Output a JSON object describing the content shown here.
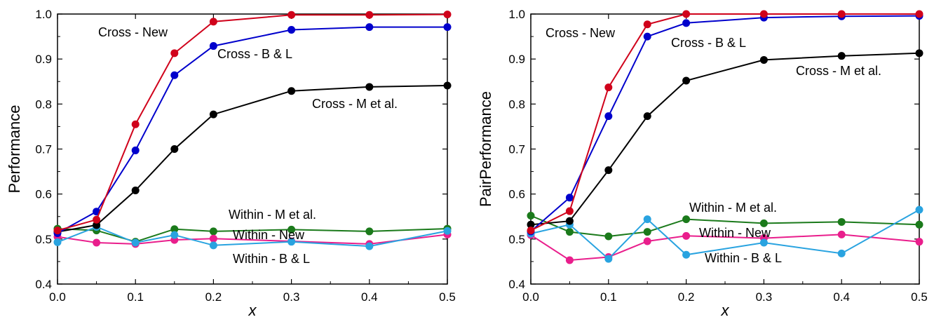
{
  "chart_data": [
    {
      "type": "line",
      "ylabel": "Performance",
      "xlabel": "x",
      "xlim": [
        0,
        0.5
      ],
      "ylim": [
        0.4,
        1.0
      ],
      "xticks": [
        "0.0",
        "0.1",
        "0.2",
        "0.3",
        "0.4",
        "0.5"
      ],
      "yticks": [
        "0.4",
        "0.5",
        "0.6",
        "0.7",
        "0.8",
        "0.9",
        "1.0"
      ],
      "x": [
        0,
        0.05,
        0.1,
        0.15,
        0.2,
        0.3,
        0.4,
        0.5
      ],
      "grid": false,
      "series": [
        {
          "name": "Cross - New",
          "color": "#d0021b",
          "values": [
            0.519,
            0.543,
            0.755,
            0.913,
            0.983,
            0.998,
            0.998,
            0.999
          ]
        },
        {
          "name": "Cross - B & L",
          "color": "#0000cc",
          "values": [
            0.513,
            0.561,
            0.697,
            0.864,
            0.929,
            0.965,
            0.971,
            0.971
          ]
        },
        {
          "name": "Cross - M et al.",
          "color": "#000000",
          "values": [
            0.516,
            0.531,
            0.608,
            0.7,
            0.777,
            0.829,
            0.838,
            0.841
          ]
        },
        {
          "name": "Within - M et al.",
          "color": "#1b7a1b",
          "values": [
            0.523,
            0.519,
            0.494,
            0.522,
            0.517,
            0.521,
            0.517,
            0.523
          ]
        },
        {
          "name": "Within - New",
          "color": "#e91e8c",
          "values": [
            0.505,
            0.492,
            0.489,
            0.498,
            0.501,
            0.495,
            0.489,
            0.51
          ]
        },
        {
          "name": "Within - B & L",
          "color": "#29a3e0",
          "values": [
            0.493,
            0.527,
            0.492,
            0.509,
            0.486,
            0.494,
            0.484,
            0.518
          ]
        }
      ],
      "annotations": [
        {
          "text": "Cross - New",
          "series": 0
        },
        {
          "text": "Cross - B & L",
          "series": 1
        },
        {
          "text": "Cross - M et al.",
          "series": 2
        },
        {
          "text": "Within - M et al.",
          "series": 3
        },
        {
          "text": "Within - New",
          "series": 4
        },
        {
          "text": "Within - B & L",
          "series": 5
        }
      ]
    },
    {
      "type": "line",
      "ylabel": "PairPerformance",
      "xlabel": "x",
      "xlim": [
        0,
        0.5
      ],
      "ylim": [
        0.4,
        1.0
      ],
      "xticks": [
        "0.0",
        "0.1",
        "0.2",
        "0.3",
        "0.4",
        "0.5"
      ],
      "yticks": [
        "0.4",
        "0.5",
        "0.6",
        "0.7",
        "0.8",
        "0.9",
        "1.0"
      ],
      "x": [
        0,
        0.05,
        0.1,
        0.15,
        0.2,
        0.3,
        0.4,
        0.5
      ],
      "grid": false,
      "series": [
        {
          "name": "Cross - New",
          "color": "#d0021b",
          "values": [
            0.519,
            0.562,
            0.837,
            0.977,
            1.0,
            1.0,
            1.0,
            1.0
          ]
        },
        {
          "name": "Cross - B & L",
          "color": "#0000cc",
          "values": [
            0.517,
            0.592,
            0.773,
            0.95,
            0.98,
            0.992,
            0.995,
            0.996
          ]
        },
        {
          "name": "Cross - M et al.",
          "color": "#000000",
          "values": [
            0.532,
            0.54,
            0.653,
            0.773,
            0.852,
            0.898,
            0.907,
            0.913
          ]
        },
        {
          "name": "Within - M et al.",
          "color": "#1b7a1b",
          "values": [
            0.552,
            0.516,
            0.506,
            0.516,
            0.544,
            0.535,
            0.538,
            0.532
          ]
        },
        {
          "name": "Within - New",
          "color": "#e91e8c",
          "values": [
            0.509,
            0.453,
            0.46,
            0.495,
            0.507,
            0.502,
            0.51,
            0.494
          ]
        },
        {
          "name": "Within - B & L",
          "color": "#29a3e0",
          "values": [
            0.512,
            0.532,
            0.456,
            0.544,
            0.465,
            0.492,
            0.468,
            0.565
          ]
        }
      ],
      "annotations": [
        {
          "text": "Cross - New",
          "series": 0
        },
        {
          "text": "Cross - B & L",
          "series": 1
        },
        {
          "text": "Cross - M et al.",
          "series": 2
        },
        {
          "text": "Within - M et al.",
          "series": 3
        },
        {
          "text": "Within - New",
          "series": 4
        },
        {
          "text": "Within - B & L",
          "series": 5
        }
      ]
    }
  ]
}
